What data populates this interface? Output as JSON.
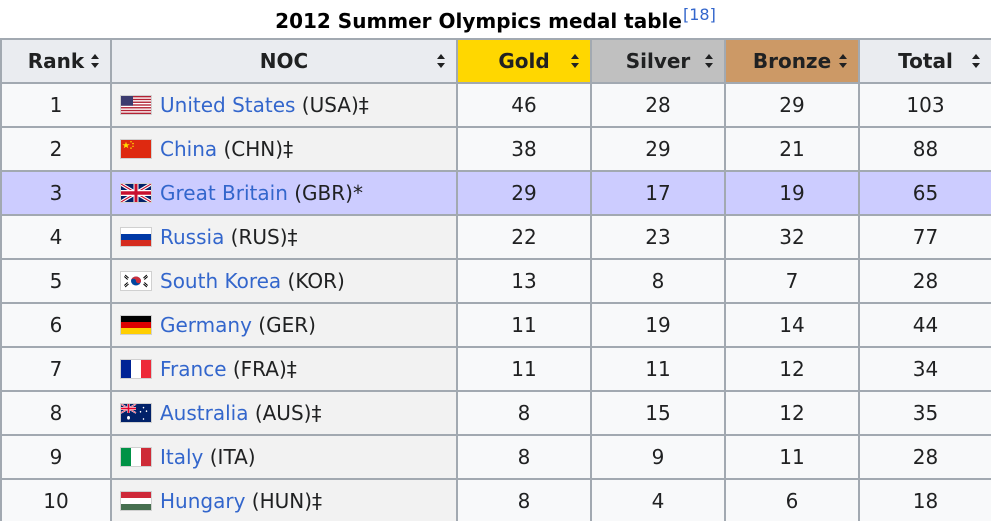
{
  "caption": {
    "title": "2012 Summer Olympics medal table",
    "ref": "[18]"
  },
  "columns": {
    "rank": "Rank",
    "noc": "NOC",
    "gold": "Gold",
    "silver": "Silver",
    "bronze": "Bronze",
    "total": "Total"
  },
  "colors": {
    "gold": "#ffd700",
    "silver": "#c0c0c0",
    "bronze": "#cc9966",
    "host_row": "#ccccff",
    "link": "#3366cc"
  },
  "rows": [
    {
      "rank": "1",
      "flag": "usa-flag-icon",
      "nation": "United States",
      "code": " (USA)‡",
      "gold": "46",
      "silver": "28",
      "bronze": "29",
      "total": "103"
    },
    {
      "rank": "2",
      "flag": "china-flag-icon",
      "nation": "China",
      "code": " (CHN)‡",
      "gold": "38",
      "silver": "29",
      "bronze": "21",
      "total": "88"
    },
    {
      "rank": "3",
      "flag": "great-britain-flag-icon",
      "nation": "Great Britain",
      "code": " (GBR)*",
      "gold": "29",
      "silver": "17",
      "bronze": "19",
      "total": "65"
    },
    {
      "rank": "4",
      "flag": "russia-flag-icon",
      "nation": "Russia",
      "code": " (RUS)‡",
      "gold": "22",
      "silver": "23",
      "bronze": "32",
      "total": "77"
    },
    {
      "rank": "5",
      "flag": "south-korea-flag-icon",
      "nation": "South Korea",
      "code": " (KOR)",
      "gold": "13",
      "silver": "8",
      "bronze": "7",
      "total": "28"
    },
    {
      "rank": "6",
      "flag": "germany-flag-icon",
      "nation": "Germany",
      "code": " (GER)",
      "gold": "11",
      "silver": "19",
      "bronze": "14",
      "total": "44"
    },
    {
      "rank": "7",
      "flag": "france-flag-icon",
      "nation": "France",
      "code": " (FRA)‡",
      "gold": "11",
      "silver": "11",
      "bronze": "12",
      "total": "34"
    },
    {
      "rank": "8",
      "flag": "australia-flag-icon",
      "nation": "Australia",
      "code": " (AUS)‡",
      "gold": "8",
      "silver": "15",
      "bronze": "12",
      "total": "35"
    },
    {
      "rank": "9",
      "flag": "italy-flag-icon",
      "nation": "Italy",
      "code": " (ITA)",
      "gold": "8",
      "silver": "9",
      "bronze": "11",
      "total": "28"
    },
    {
      "rank": "10",
      "flag": "hungary-flag-icon",
      "nation": "Hungary",
      "code": " (HUN)‡",
      "gold": "8",
      "silver": "4",
      "bronze": "6",
      "total": "18"
    }
  ]
}
